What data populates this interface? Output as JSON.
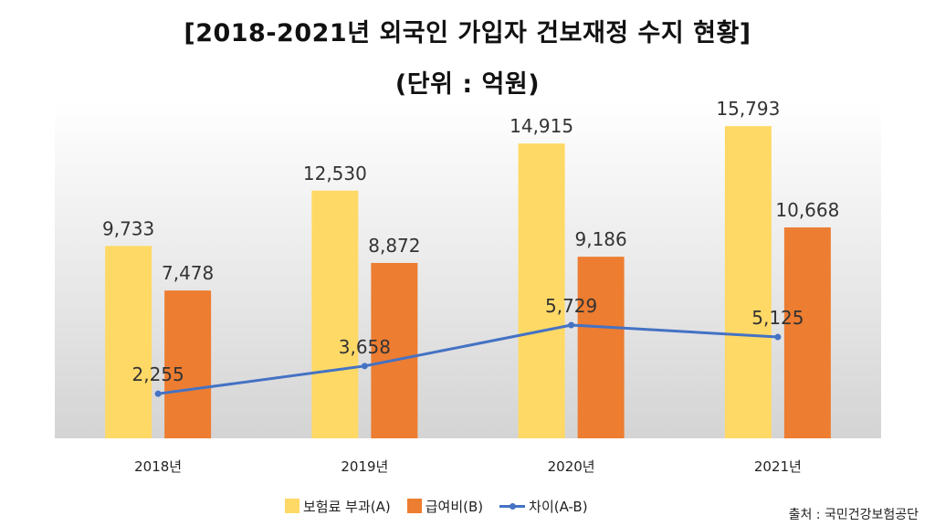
{
  "chart_data": {
    "type": "bar",
    "title": "[2018-2021년 외국인 가입자 건보재정 수지 현황]",
    "subtitle": "(단위 : 억원)",
    "categories": [
      "2018년",
      "2019년",
      "2020년",
      "2021년"
    ],
    "series": [
      {
        "name": "보험료 부과(A)",
        "type": "bar",
        "color": "#FFD966",
        "values": [
          9733,
          12530,
          14915,
          15793
        ]
      },
      {
        "name": "급여비(B)",
        "type": "bar",
        "color": "#ED7D31",
        "values": [
          7478,
          8872,
          9186,
          10668
        ]
      },
      {
        "name": "차이(A-B)",
        "type": "line",
        "color": "#4472C4",
        "values": [
          2255,
          3658,
          5729,
          5125
        ]
      }
    ],
    "ylim": [
      0,
      17000
    ],
    "grid": false,
    "legend": "bottom",
    "source": "출처 : 국민건강보험공단"
  }
}
